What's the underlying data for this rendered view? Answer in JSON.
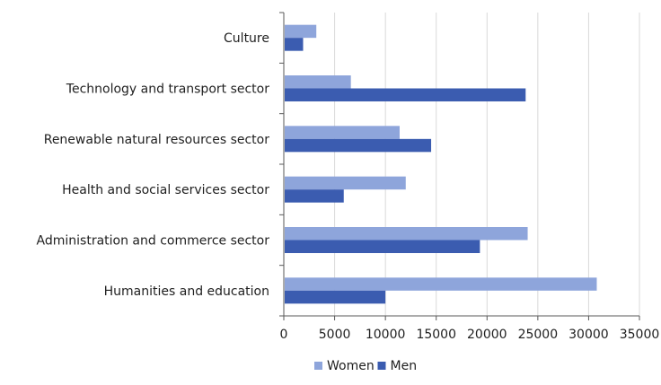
{
  "chart_data": {
    "type": "bar",
    "orientation": "horizontal",
    "title": "",
    "xlabel": "",
    "ylabel": "",
    "categories": [
      "Culture",
      "Technology and transport sector",
      "Renewable natural resources sector",
      "Health and social services sector",
      "Administration and commerce sector",
      "Humanities and education"
    ],
    "series": [
      {
        "name": "Women",
        "color": "#8EA5DB",
        "values": [
          3200,
          6600,
          11400,
          12000,
          24000,
          30800
        ]
      },
      {
        "name": "Men",
        "color": "#3B5CB0",
        "values": [
          1900,
          23800,
          14500,
          5900,
          19300,
          10000
        ]
      }
    ],
    "xlim": [
      0,
      35000
    ],
    "xticks": [
      "0",
      "5000",
      "10000",
      "15000",
      "20000",
      "25000",
      "30000",
      "35000"
    ],
    "grid": "vertical",
    "legend_position": "bottom"
  }
}
